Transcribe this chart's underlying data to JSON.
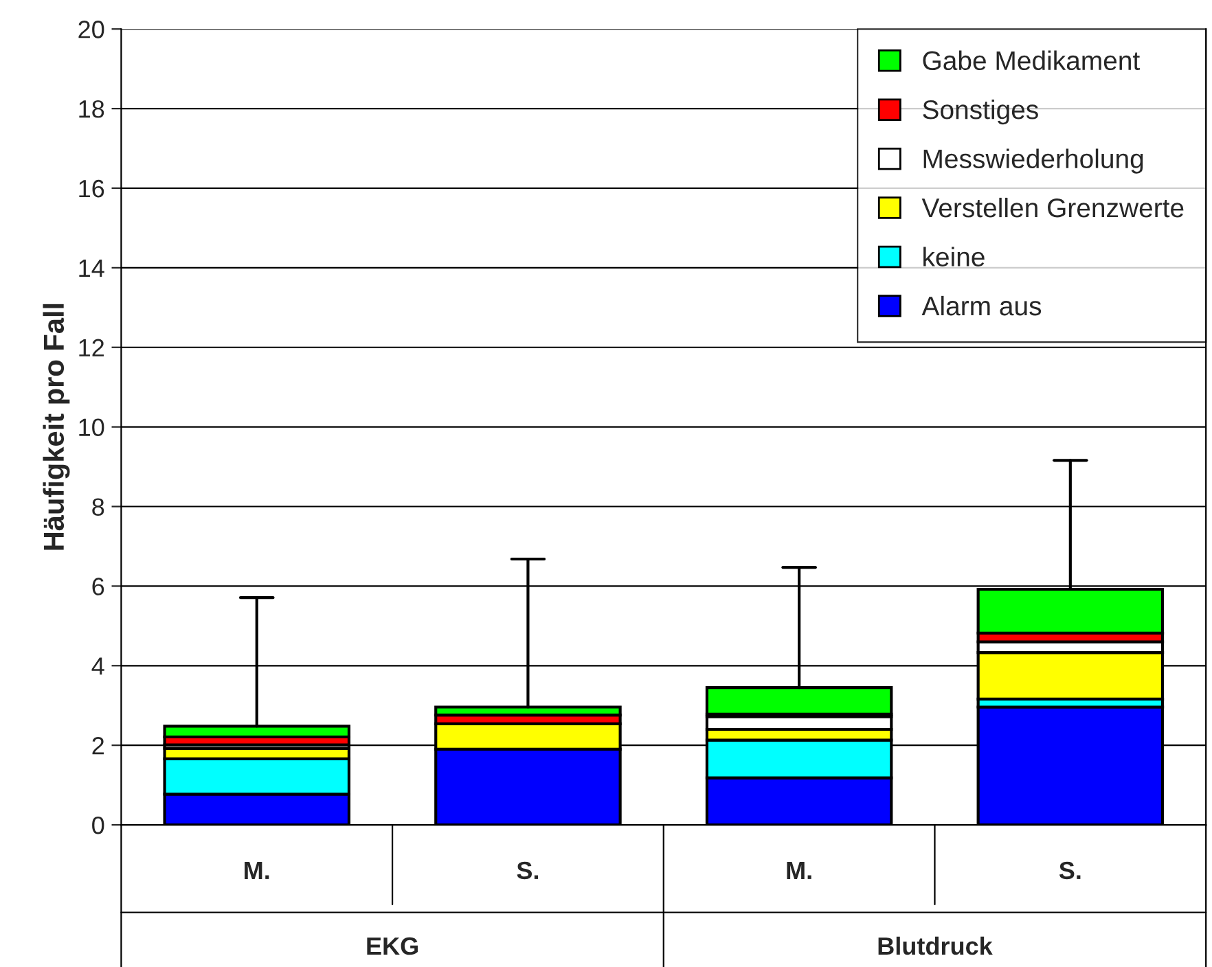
{
  "chart_data": {
    "type": "bar",
    "stacked": true,
    "ylabel": "Häufigkeit pro Fall",
    "categories": [
      "M.",
      "S.",
      "M.",
      "S."
    ],
    "annotations": [
      "EKG",
      "Blutdruck"
    ],
    "series": [
      {
        "name": "Alarm aus",
        "color": "#0000ff",
        "values": [
          0.77,
          1.9,
          1.18,
          2.96
        ]
      },
      {
        "name": "keine",
        "color": "#00ffff",
        "values": [
          0.89,
          null,
          0.95,
          0.2
        ]
      },
      {
        "name": "Verstellen Grenzwerte",
        "color": "#ffff00",
        "values": [
          0.26,
          0.64,
          0.27,
          1.17
        ]
      },
      {
        "name": "Messwiederholung",
        "color": "#ffffff",
        "values": [
          0.09,
          null,
          0.32,
          0.27
        ]
      },
      {
        "name": "Sonstiges",
        "color": "#ff0000",
        "values": [
          0.2,
          0.22,
          0.06,
          0.22
        ]
      },
      {
        "name": "Gabe Medikament",
        "color": "#00ff00",
        "values": [
          0.27,
          0.2,
          0.67,
          1.1
        ],
        "errors": [
          [
            2.48,
            5.71
          ],
          [
            2.96,
            6.68
          ],
          [
            3.45,
            6.47
          ],
          [
            5.92,
            9.16
          ]
        ]
      }
    ],
    "ylim": [
      0,
      20
    ],
    "yticks": [
      0,
      2,
      4,
      6,
      8,
      10,
      12,
      14,
      16,
      18,
      20
    ],
    "grid": "y",
    "legend": "top right"
  }
}
